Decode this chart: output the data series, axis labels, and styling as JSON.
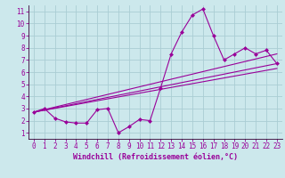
{
  "xlabel": "Windchill (Refroidissement éolien,°C)",
  "bg_color": "#cce8ec",
  "grid_color": "#aacdd4",
  "line_color": "#990099",
  "spine_color": "#330033",
  "xlim": [
    -0.5,
    23.5
  ],
  "ylim": [
    0.5,
    11.5
  ],
  "xticks": [
    0,
    1,
    2,
    3,
    4,
    5,
    6,
    7,
    8,
    9,
    10,
    11,
    12,
    13,
    14,
    15,
    16,
    17,
    18,
    19,
    20,
    21,
    22,
    23
  ],
  "yticks": [
    1,
    2,
    3,
    4,
    5,
    6,
    7,
    8,
    9,
    10,
    11
  ],
  "main_x": [
    0,
    1,
    2,
    3,
    4,
    5,
    6,
    7,
    8,
    9,
    10,
    11,
    12,
    13,
    14,
    15,
    16,
    17,
    18,
    19,
    20,
    21,
    22,
    23
  ],
  "main_y": [
    2.7,
    3.0,
    2.2,
    1.9,
    1.8,
    1.8,
    2.9,
    3.0,
    1.0,
    1.5,
    2.1,
    2.0,
    4.7,
    7.5,
    9.3,
    10.7,
    11.2,
    9.0,
    7.0,
    7.5,
    8.0,
    7.5,
    7.8,
    6.7
  ],
  "trend1_x": [
    0,
    23
  ],
  "trend1_y": [
    2.7,
    7.5
  ],
  "trend2_x": [
    0,
    23
  ],
  "trend2_y": [
    2.7,
    6.7
  ],
  "trend3_x": [
    0,
    23
  ],
  "trend3_y": [
    2.7,
    6.3
  ],
  "xlabel_fontsize": 6,
  "tick_fontsize": 5.5
}
